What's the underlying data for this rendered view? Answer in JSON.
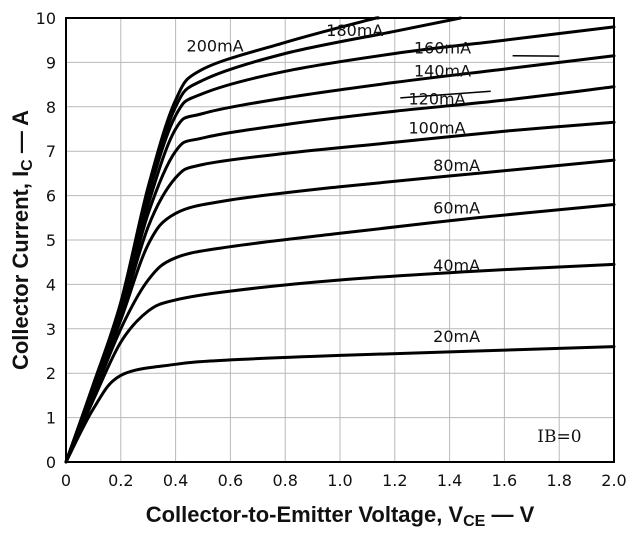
{
  "chart_data": {
    "type": "line",
    "xlabel": "Collector-to-Emitter Voltage, V",
    "xlabel_sub": "CE",
    "xlabel_unit": " — V",
    "ylabel": "Collector Current, I",
    "ylabel_sub": "C",
    "ylabel_unit": " — A",
    "xlim": [
      0,
      2.0
    ],
    "ylim": [
      0,
      10
    ],
    "x_ticks": [
      "0",
      "0.2",
      "0.4",
      "0.6",
      "0.8",
      "1.0",
      "1.2",
      "1.4",
      "1.6",
      "1.8",
      "2.0"
    ],
    "y_ticks": [
      "0",
      "1",
      "2",
      "3",
      "4",
      "5",
      "6",
      "7",
      "8",
      "9",
      "10"
    ],
    "grid": true,
    "annotation": {
      "text": "IB=0",
      "x": 1.72,
      "y": 0.45
    },
    "series": [
      {
        "name": "20mA",
        "points": [
          [
            0,
            0
          ],
          [
            0.1,
            1.2
          ],
          [
            0.2,
            1.95
          ],
          [
            0.4,
            2.2
          ],
          [
            0.6,
            2.3
          ],
          [
            1.0,
            2.4
          ],
          [
            1.5,
            2.5
          ],
          [
            2.0,
            2.6
          ]
        ]
      },
      {
        "name": "40mA",
        "points": [
          [
            0,
            0
          ],
          [
            0.1,
            1.4
          ],
          [
            0.2,
            2.7
          ],
          [
            0.3,
            3.4
          ],
          [
            0.4,
            3.65
          ],
          [
            0.6,
            3.85
          ],
          [
            1.0,
            4.1
          ],
          [
            1.5,
            4.3
          ],
          [
            2.0,
            4.45
          ]
        ]
      },
      {
        "name": "60mA",
        "points": [
          [
            0,
            0
          ],
          [
            0.1,
            1.5
          ],
          [
            0.2,
            3.0
          ],
          [
            0.3,
            4.1
          ],
          [
            0.4,
            4.6
          ],
          [
            0.6,
            4.85
          ],
          [
            1.0,
            5.15
          ],
          [
            1.5,
            5.5
          ],
          [
            2.0,
            5.8
          ]
        ]
      },
      {
        "name": "80mA",
        "points": [
          [
            0,
            0
          ],
          [
            0.1,
            1.6
          ],
          [
            0.2,
            3.2
          ],
          [
            0.3,
            4.9
          ],
          [
            0.4,
            5.6
          ],
          [
            0.6,
            5.9
          ],
          [
            1.0,
            6.2
          ],
          [
            1.5,
            6.5
          ],
          [
            2.0,
            6.8
          ]
        ]
      },
      {
        "name": "100mA",
        "points": [
          [
            0,
            0
          ],
          [
            0.1,
            1.6
          ],
          [
            0.2,
            3.3
          ],
          [
            0.3,
            5.3
          ],
          [
            0.4,
            6.4
          ],
          [
            0.5,
            6.7
          ],
          [
            0.8,
            6.95
          ],
          [
            1.2,
            7.2
          ],
          [
            1.6,
            7.45
          ],
          [
            2.0,
            7.65
          ]
        ]
      },
      {
        "name": "120mA",
        "points": [
          [
            0,
            0
          ],
          [
            0.1,
            1.7
          ],
          [
            0.2,
            3.4
          ],
          [
            0.3,
            5.6
          ],
          [
            0.4,
            7.0
          ],
          [
            0.5,
            7.3
          ],
          [
            0.8,
            7.6
          ],
          [
            1.2,
            7.9
          ],
          [
            1.6,
            8.15
          ],
          [
            2.0,
            8.45
          ]
        ]
      },
      {
        "name": "140mA",
        "points": [
          [
            0,
            0
          ],
          [
            0.1,
            1.7
          ],
          [
            0.2,
            3.45
          ],
          [
            0.3,
            5.8
          ],
          [
            0.4,
            7.5
          ],
          [
            0.5,
            7.85
          ],
          [
            0.8,
            8.2
          ],
          [
            1.2,
            8.55
          ],
          [
            1.6,
            8.85
          ],
          [
            2.0,
            9.15
          ]
        ]
      },
      {
        "name": "160mA",
        "points": [
          [
            0,
            0
          ],
          [
            0.1,
            1.7
          ],
          [
            0.2,
            3.5
          ],
          [
            0.3,
            6.0
          ],
          [
            0.4,
            7.8
          ],
          [
            0.5,
            8.3
          ],
          [
            0.8,
            8.8
          ],
          [
            1.2,
            9.2
          ],
          [
            1.6,
            9.5
          ],
          [
            2.0,
            9.8
          ]
        ]
      },
      {
        "name": "180mA",
        "points": [
          [
            0,
            0
          ],
          [
            0.1,
            1.75
          ],
          [
            0.2,
            3.55
          ],
          [
            0.3,
            6.1
          ],
          [
            0.4,
            8.0
          ],
          [
            0.5,
            8.6
          ],
          [
            0.8,
            9.2
          ],
          [
            1.2,
            9.7
          ],
          [
            1.44,
            10.0
          ]
        ]
      },
      {
        "name": "200mA",
        "points": [
          [
            0,
            0
          ],
          [
            0.1,
            1.75
          ],
          [
            0.2,
            3.6
          ],
          [
            0.3,
            6.2
          ],
          [
            0.4,
            8.15
          ],
          [
            0.5,
            8.85
          ],
          [
            0.8,
            9.45
          ],
          [
            1.1,
            9.95
          ],
          [
            1.14,
            10.0
          ]
        ]
      }
    ],
    "labels": [
      {
        "text": "200mA",
        "x": 0.44,
        "y": 9.25
      },
      {
        "text": "180mA",
        "x": 0.95,
        "y": 9.6
      },
      {
        "text": "160mA",
        "x": 1.27,
        "y": 9.2
      },
      {
        "text": "140mA",
        "x": 1.27,
        "y": 8.68
      },
      {
        "text": "120mA",
        "x": 1.25,
        "y": 8.05
      },
      {
        "text": "100mA",
        "x": 1.25,
        "y": 7.4
      },
      {
        "text": "80mA",
        "x": 1.34,
        "y": 6.55
      },
      {
        "text": "60mA",
        "x": 1.34,
        "y": 5.6
      },
      {
        "text": "40mA",
        "x": 1.34,
        "y": 4.3
      },
      {
        "text": "20mA",
        "x": 1.34,
        "y": 2.7
      }
    ],
    "leaders": [
      {
        "from": [
          1.63,
          9.15
        ],
        "to": [
          1.8,
          9.14
        ]
      },
      {
        "from": [
          1.55,
          8.35
        ],
        "to": [
          1.22,
          8.2
        ]
      }
    ]
  }
}
